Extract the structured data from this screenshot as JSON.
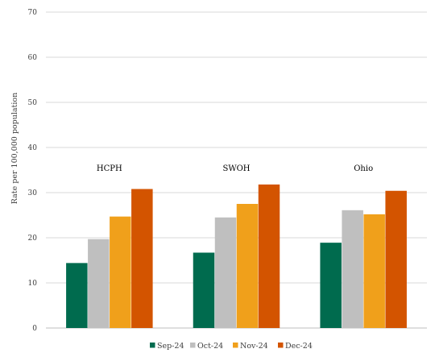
{
  "chart_data": {
    "type": "bar",
    "title": "",
    "xlabel": "",
    "ylabel": "Rate per 100,000 population",
    "ylim": [
      0,
      70
    ],
    "yticks": [
      0,
      10,
      20,
      30,
      40,
      50,
      60,
      70
    ],
    "grid": true,
    "legend_position": "bottom",
    "categories": [
      "HCPH",
      "SWOH",
      "Ohio"
    ],
    "series": [
      {
        "name": "Sep-24",
        "color": "#006b4e",
        "values": [
          14.4,
          16.7,
          18.9
        ]
      },
      {
        "name": "Oct-24",
        "color": "#bfbfbf",
        "values": [
          19.7,
          24.5,
          26.1
        ]
      },
      {
        "name": "Nov-24",
        "color": "#f0a01b",
        "values": [
          24.7,
          27.5,
          25.2
        ]
      },
      {
        "name": "Dec-24",
        "color": "#d35400",
        "values": [
          30.8,
          31.8,
          30.4
        ]
      }
    ]
  }
}
